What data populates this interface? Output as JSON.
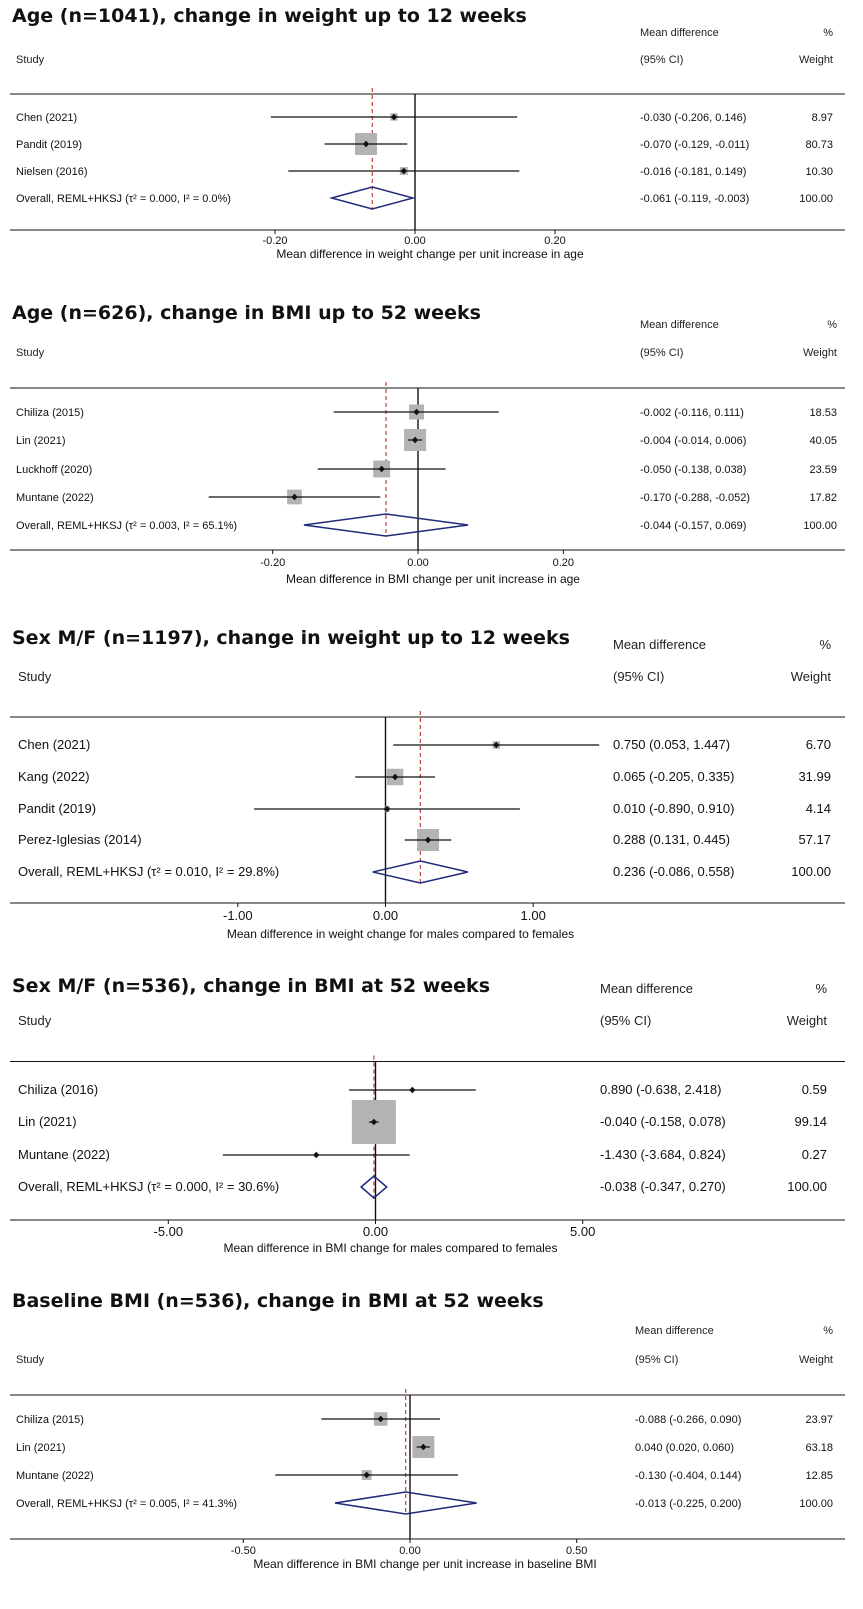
{
  "chart_data": [
    {
      "type": "forest",
      "title": "Age (n=1041), change in weight up to 12 weeks",
      "header": {
        "study": "Study",
        "md_line1": "Mean difference",
        "md_line2": "(95% CI)",
        "w_line1": "%",
        "w_line2": "Weight"
      },
      "xlabel": "Mean difference in weight change per unit increase in age",
      "xlim": [
        -0.3,
        0.3
      ],
      "ticks": [
        -0.2,
        0.0,
        0.2
      ],
      "tick_labels": [
        "-0.20",
        "0.00",
        "0.20"
      ],
      "null_value": 0,
      "studies": [
        {
          "name": "Chen (2021)",
          "md": -0.03,
          "lower": -0.206,
          "upper": 0.146,
          "ci_text": "-0.030 (-0.206, 0.146)",
          "weight": 8.97,
          "weight_text": "8.97"
        },
        {
          "name": "Pandit (2019)",
          "md": -0.07,
          "lower": -0.129,
          "upper": -0.011,
          "ci_text": "-0.070 (-0.129, -0.011)",
          "weight": 80.73,
          "weight_text": "80.73"
        },
        {
          "name": "Nielsen (2016)",
          "md": -0.016,
          "lower": -0.181,
          "upper": 0.149,
          "ci_text": "-0.016 (-0.181, 0.149)",
          "weight": 10.3,
          "weight_text": "10.30"
        }
      ],
      "overall": {
        "label": "Overall, REML+HKSJ (τ² = 0.000, I² = 0.0%)",
        "md": -0.061,
        "lower": -0.119,
        "upper": -0.003,
        "ci_text": "-0.061 (-0.119, -0.003)",
        "weight_text": "100.00"
      }
    },
    {
      "type": "forest",
      "title": "Age (n=626), change in BMI up to 52 weeks",
      "header": {
        "study": "Study",
        "md_line1": "Mean difference",
        "md_line2": "(95% CI)",
        "w_line1": "%",
        "w_line2": "Weight"
      },
      "xlabel": "Mean difference in BMI change per unit increase in age",
      "xlim": [
        -0.3,
        0.3
      ],
      "ticks": [
        -0.2,
        0.0,
        0.2
      ],
      "tick_labels": [
        "-0.20",
        "0.00",
        "0.20"
      ],
      "null_value": 0,
      "studies": [
        {
          "name": "Chiliza (2015)",
          "md": -0.002,
          "lower": -0.116,
          "upper": 0.111,
          "ci_text": "-0.002 (-0.116, 0.111)",
          "weight": 18.53,
          "weight_text": "18.53"
        },
        {
          "name": "Lin (2021)",
          "md": -0.004,
          "lower": -0.014,
          "upper": 0.006,
          "ci_text": "-0.004 (-0.014, 0.006)",
          "weight": 40.05,
          "weight_text": "40.05"
        },
        {
          "name": "Luckhoff (2020)",
          "md": -0.05,
          "lower": -0.138,
          "upper": 0.038,
          "ci_text": "-0.050 (-0.138, 0.038)",
          "weight": 23.59,
          "weight_text": "23.59"
        },
        {
          "name": "Muntane (2022)",
          "md": -0.17,
          "lower": -0.288,
          "upper": -0.052,
          "ci_text": "-0.170 (-0.288, -0.052)",
          "weight": 17.82,
          "weight_text": "17.82"
        }
      ],
      "overall": {
        "label": "Overall, REML+HKSJ (τ² = 0.003, I² = 65.1%)",
        "md": -0.044,
        "lower": -0.157,
        "upper": 0.069,
        "ci_text": "-0.044 (-0.157, 0.069)",
        "weight_text": "100.00"
      }
    },
    {
      "type": "forest",
      "title": "Sex M/F (n=1197), change in weight up to 12 weeks",
      "header": {
        "study": "Study",
        "md_line1": "Mean difference",
        "md_line2": "(95% CI)",
        "w_line1": "%",
        "w_line2": "Weight"
      },
      "xlabel": "Mean difference in weight change for males compared to females",
      "xlim": [
        -1.5,
        1.5
      ],
      "ticks": [
        -1.0,
        0.0,
        1.0
      ],
      "tick_labels": [
        "-1.00",
        "0.00",
        "1.00"
      ],
      "null_value": 0,
      "studies": [
        {
          "name": "Chen (2021)",
          "md": 0.75,
          "lower": 0.053,
          "upper": 1.447,
          "ci_text": "0.750 (0.053, 1.447)",
          "weight": 6.7,
          "weight_text": "6.70"
        },
        {
          "name": "Kang (2022)",
          "md": 0.065,
          "lower": -0.205,
          "upper": 0.335,
          "ci_text": "0.065 (-0.205, 0.335)",
          "weight": 31.99,
          "weight_text": "31.99"
        },
        {
          "name": "Pandit (2019)",
          "md": 0.01,
          "lower": -0.89,
          "upper": 0.91,
          "ci_text": "0.010 (-0.890, 0.910)",
          "weight": 4.14,
          "weight_text": "4.14"
        },
        {
          "name": "Perez-Iglesias (2014)",
          "md": 0.288,
          "lower": 0.131,
          "upper": 0.445,
          "ci_text": "0.288 (0.131, 0.445)",
          "weight": 57.17,
          "weight_text": "57.17"
        }
      ],
      "overall": {
        "label": "Overall, REML+HKSJ (τ² = 0.010, I² = 29.8%)",
        "md": 0.236,
        "lower": -0.086,
        "upper": 0.558,
        "ci_text": "0.236 (-0.086, 0.558)",
        "weight_text": "100.00"
      }
    },
    {
      "type": "forest",
      "title": "Sex M/F (n=536), change in BMI at 52 weeks",
      "header": {
        "study": "Study",
        "md_line1": "Mean difference",
        "md_line2": "(95% CI)",
        "w_line1": "%",
        "w_line2": "Weight"
      },
      "xlabel": "Mean difference in BMI change for males compared to females",
      "xlim": [
        -8.0,
        8.0
      ],
      "ticks": [
        -5.0,
        0.0,
        5.0
      ],
      "tick_labels": [
        "-5.00",
        "0.00",
        "5.00"
      ],
      "null_value": 0,
      "studies": [
        {
          "name": "Chiliza (2016)",
          "md": 0.89,
          "lower": -0.638,
          "upper": 2.418,
          "ci_text": "0.890 (-0.638, 2.418)",
          "weight": 0.59,
          "weight_text": "0.59"
        },
        {
          "name": "Lin (2021)",
          "md": -0.04,
          "lower": -0.158,
          "upper": 0.078,
          "ci_text": "-0.040 (-0.158, 0.078)",
          "weight": 99.14,
          "weight_text": "99.14"
        },
        {
          "name": "Muntane (2022)",
          "md": -1.43,
          "lower": -3.684,
          "upper": 0.824,
          "ci_text": "-1.430 (-3.684, 0.824)",
          "weight": 0.27,
          "weight_text": "0.27"
        }
      ],
      "overall": {
        "label": "Overall, REML+HKSJ (τ² = 0.000, I² = 30.6%)",
        "md": -0.038,
        "lower": -0.347,
        "upper": 0.27,
        "ci_text": "-0.038 (-0.347, 0.270)",
        "weight_text": "100.00"
      }
    },
    {
      "type": "forest",
      "title": "Baseline BMI (n=536), change in BMI at 52 weeks",
      "header": {
        "study": "Study",
        "md_line1": "Mean difference",
        "md_line2": "(95% CI)",
        "w_line1": "%",
        "w_line2": "Weight"
      },
      "xlabel": "Mean difference in BMI change per unit increase in baseline BMI",
      "xlim": [
        -0.75,
        0.75
      ],
      "ticks": [
        -0.5,
        0.0,
        0.5
      ],
      "tick_labels": [
        "-0.50",
        "0.00",
        "0.50"
      ],
      "null_value": 0,
      "studies": [
        {
          "name": "Chiliza (2015)",
          "md": -0.088,
          "lower": -0.266,
          "upper": 0.09,
          "ci_text": "-0.088 (-0.266, 0.090)",
          "weight": 23.97,
          "weight_text": "23.97"
        },
        {
          "name": "Lin (2021)",
          "md": 0.04,
          "lower": 0.02,
          "upper": 0.06,
          "ci_text": "0.040 (0.020, 0.060)",
          "weight": 63.18,
          "weight_text": "63.18"
        },
        {
          "name": "Muntane (2022)",
          "md": -0.13,
          "lower": -0.404,
          "upper": 0.144,
          "ci_text": "-0.130 (-0.404, 0.144)",
          "weight": 12.85,
          "weight_text": "12.85"
        }
      ],
      "overall": {
        "label": "Overall, REML+HKSJ (τ² = 0.005, I² = 41.3%)",
        "md": -0.013,
        "lower": -0.225,
        "upper": 0.2,
        "ci_text": "-0.013 (-0.225, 0.200)",
        "weight_text": "100.00"
      }
    }
  ],
  "colors": {
    "text": "#111111",
    "box": "#b3b3b3",
    "diamond": "#1f2b7a",
    "reference_line": "#b8443a",
    "null_line": "#111111",
    "axis": "#111111"
  }
}
